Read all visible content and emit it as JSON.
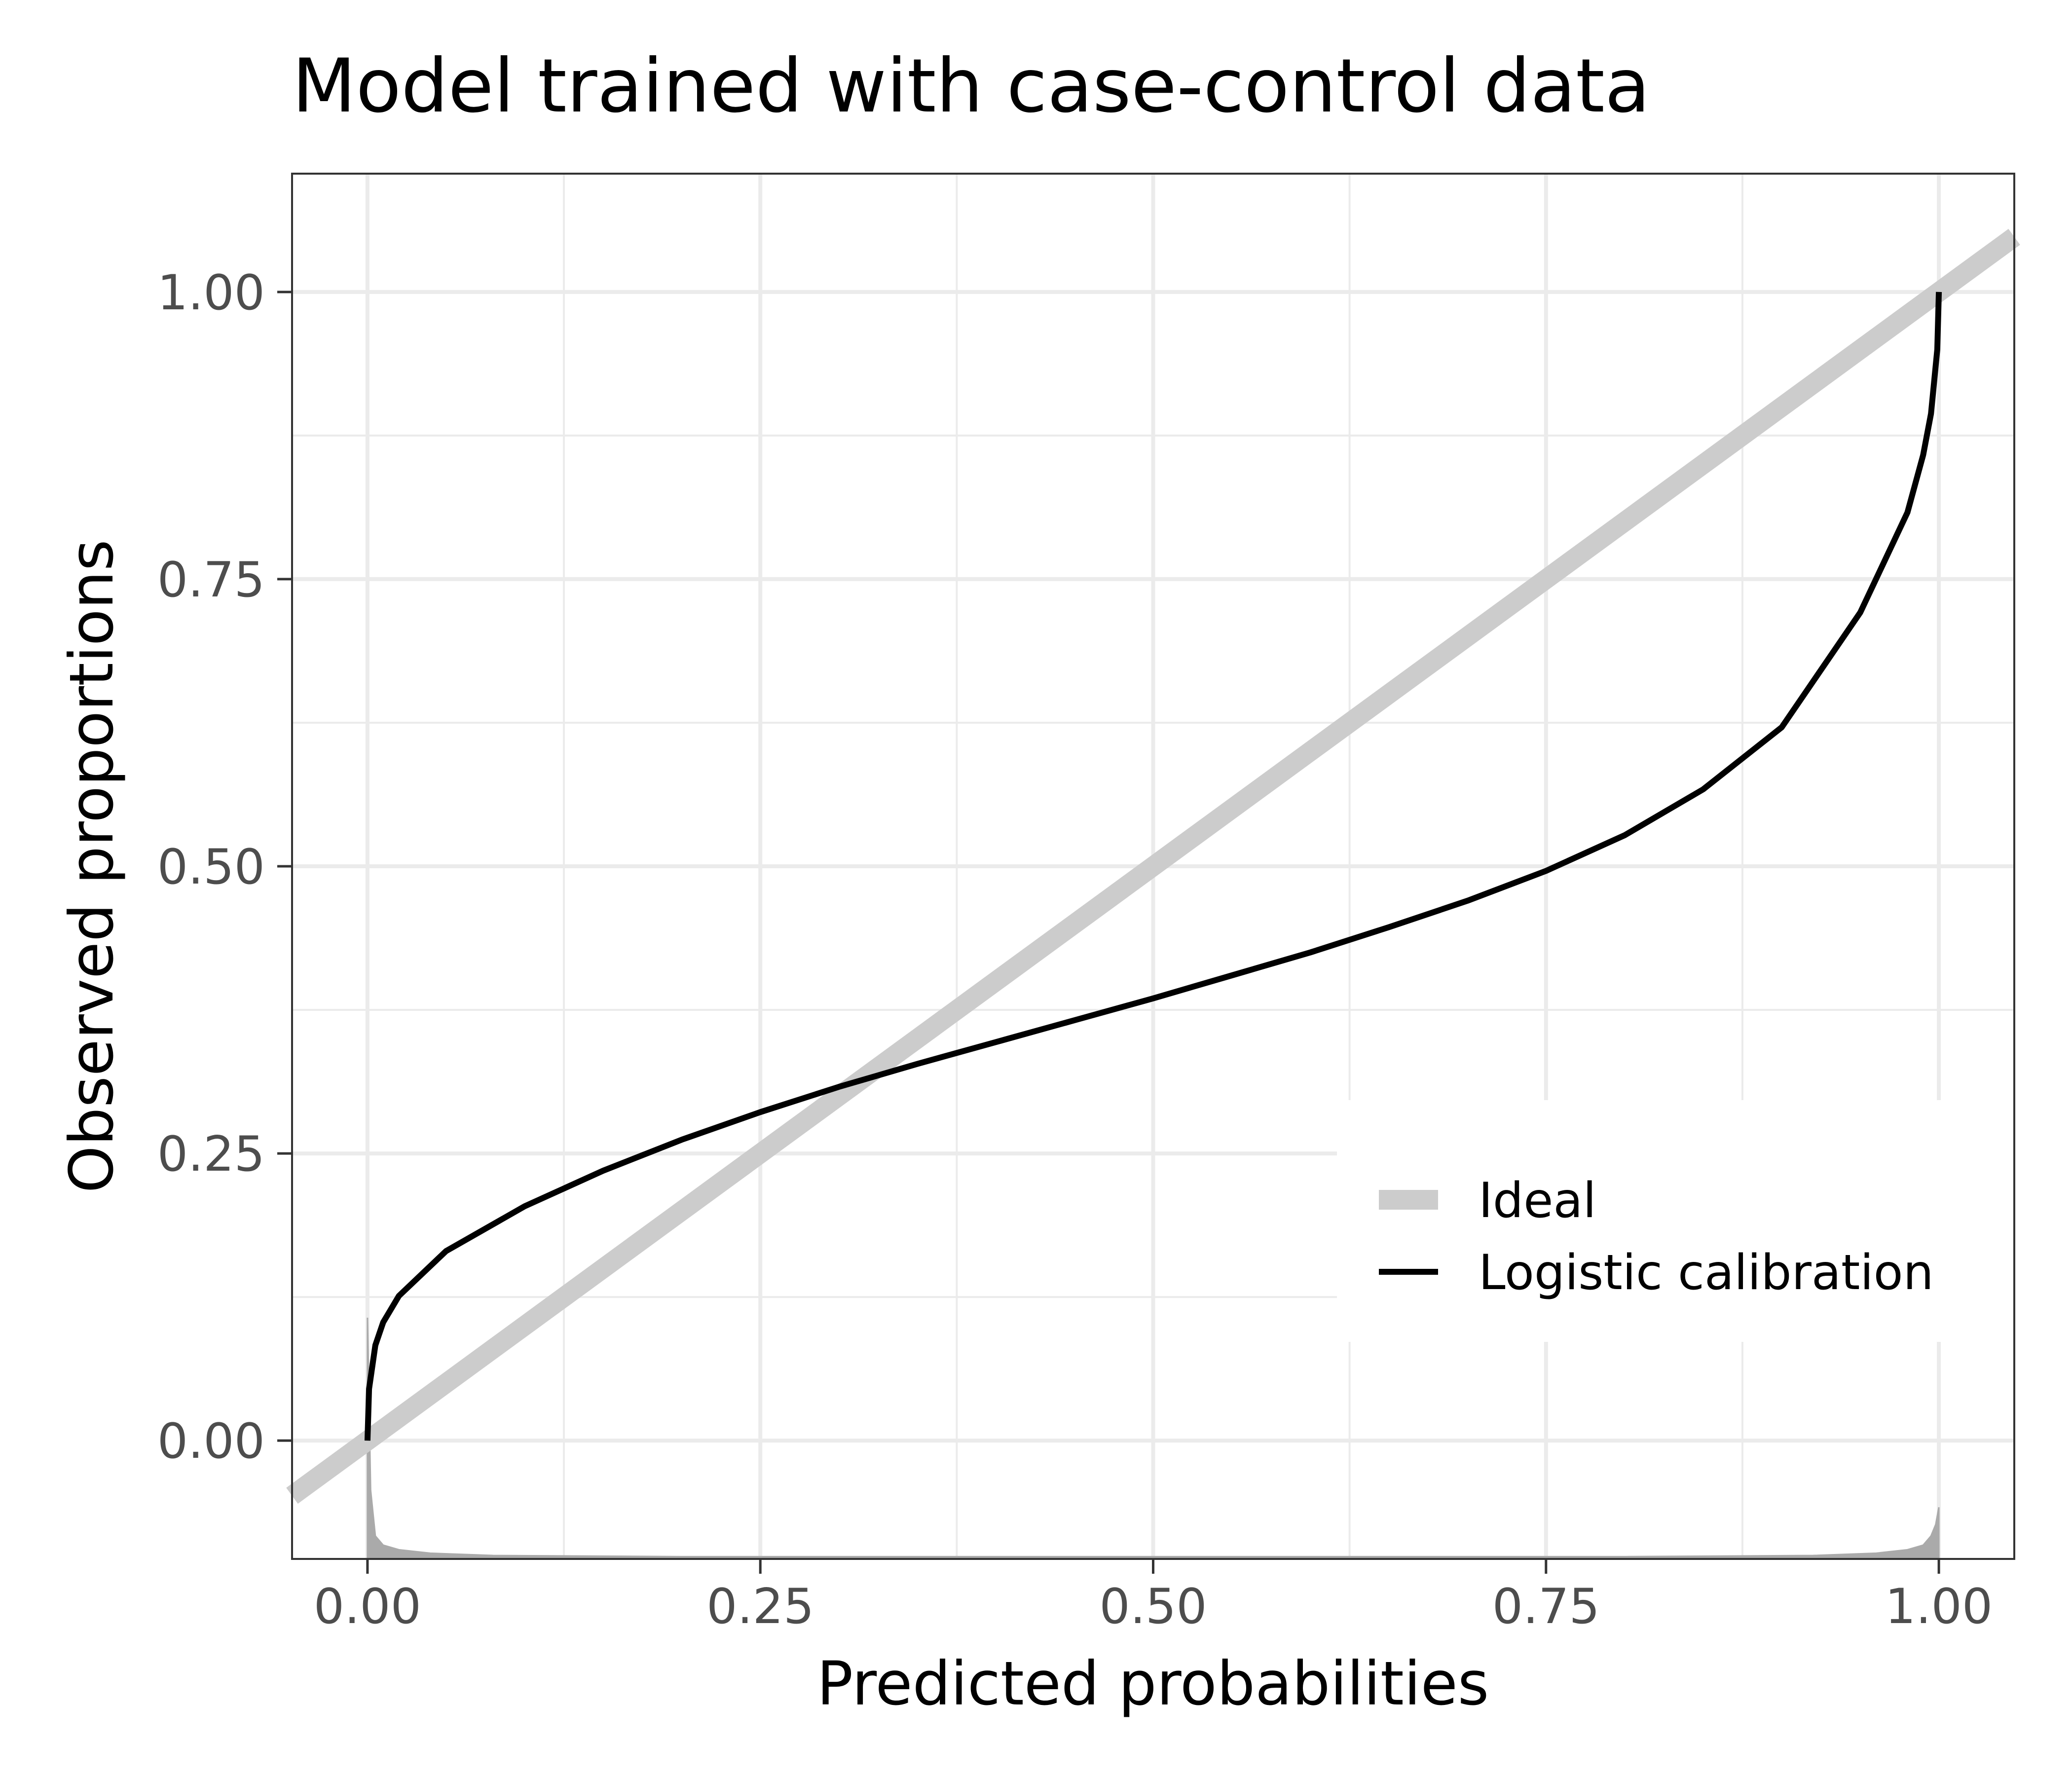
{
  "chart_data": {
    "type": "line",
    "title": "Model trained with case-control data",
    "xlabel": "Predicted probabilities",
    "ylabel": "Observed proportions",
    "xlim": [
      -0.048,
      1.048
    ],
    "ylim": [
      -0.103,
      1.103
    ],
    "x_ticks": [
      0,
      0.25,
      0.5,
      0.75,
      1
    ],
    "x_tick_labels": [
      "0.00",
      "0.25",
      "0.50",
      "0.75",
      "1.00"
    ],
    "y_ticks": [
      0,
      0.25,
      0.5,
      0.75,
      1
    ],
    "y_tick_labels": [
      "0.00",
      "0.25",
      "0.50",
      "0.75",
      "1.00"
    ],
    "grid": true,
    "legend_position": "bottom-right",
    "series": [
      {
        "name": "Ideal",
        "color": "#cccccc",
        "style": "thick line",
        "x": [
          -0.048,
          1.048
        ],
        "y": [
          -0.048,
          1.048
        ]
      },
      {
        "name": "Logistic calibration",
        "color": "#000000",
        "style": "line",
        "x": [
          0.0,
          0.001,
          0.005,
          0.01,
          0.02,
          0.05,
          0.1,
          0.15,
          0.2,
          0.25,
          0.3,
          0.35,
          0.4,
          0.45,
          0.5,
          0.55,
          0.6,
          0.65,
          0.7,
          0.75,
          0.8,
          0.85,
          0.9,
          0.95,
          0.98,
          0.99,
          0.995,
          0.999,
          1.0
        ],
        "y": [
          0.0,
          0.045,
          0.083,
          0.103,
          0.126,
          0.165,
          0.204,
          0.235,
          0.262,
          0.286,
          0.308,
          0.328,
          0.347,
          0.366,
          0.385,
          0.405,
          0.425,
          0.447,
          0.47,
          0.496,
          0.527,
          0.567,
          0.621,
          0.721,
          0.808,
          0.858,
          0.894,
          0.95,
          1.0
        ]
      }
    ],
    "rug_histogram": {
      "color": "#aaaaaa",
      "note_values": "predicted-probability density concentrated near 0 and 1",
      "bins_x": [
        0.0,
        0.002,
        0.005,
        0.01,
        0.02,
        0.04,
        0.08,
        0.2,
        0.5,
        0.8,
        0.92,
        0.96,
        0.98,
        0.99,
        0.995,
        0.998,
        1.0
      ],
      "heights": [
        0.21,
        0.06,
        0.02,
        0.012,
        0.008,
        0.005,
        0.003,
        0.002,
        0.002,
        0.002,
        0.003,
        0.005,
        0.008,
        0.012,
        0.02,
        0.03,
        0.045
      ]
    }
  }
}
